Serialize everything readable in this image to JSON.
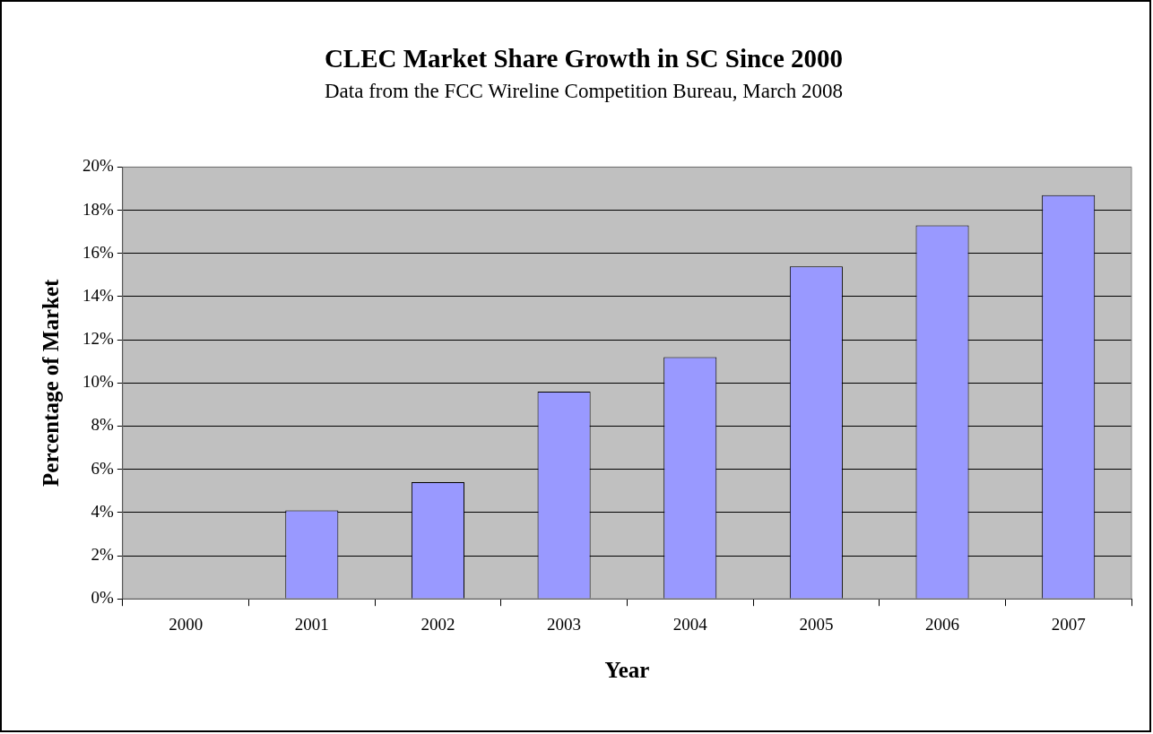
{
  "chart_data": {
    "type": "bar",
    "title": "CLEC Market Share Growth in SC Since 2000",
    "subtitle": "Data from the FCC Wireline Competition Bureau, March 2008",
    "xlabel": "Year",
    "ylabel": "Percentage of Market",
    "categories": [
      "2000",
      "2001",
      "2002",
      "2003",
      "2004",
      "2005",
      "2006",
      "2007"
    ],
    "values": [
      null,
      4.1,
      5.4,
      9.6,
      11.2,
      15.4,
      17.3,
      18.7
    ],
    "color": "#9999ff",
    "ylim": [
      0,
      20
    ],
    "yticks": [
      {
        "value": 0,
        "label": "0%"
      },
      {
        "value": 2,
        "label": "2%"
      },
      {
        "value": 4,
        "label": "4%"
      },
      {
        "value": 6,
        "label": "6%"
      },
      {
        "value": 8,
        "label": "8%"
      },
      {
        "value": 10,
        "label": "10%"
      },
      {
        "value": 12,
        "label": "12%"
      },
      {
        "value": 14,
        "label": "14%"
      },
      {
        "value": 16,
        "label": "16%"
      },
      {
        "value": 18,
        "label": "18%"
      },
      {
        "value": 20,
        "label": "20%"
      }
    ],
    "grid": "y",
    "legend": false
  }
}
